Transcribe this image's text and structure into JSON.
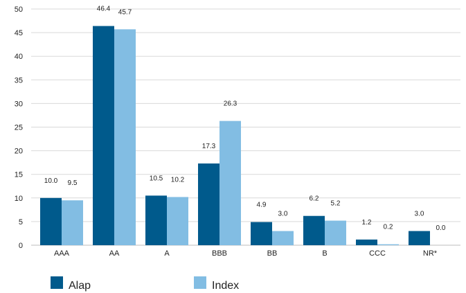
{
  "chart_data": {
    "type": "bar",
    "categories": [
      "AAA",
      "AA",
      "A",
      "BBB",
      "BB",
      "B",
      "CCC",
      "NR*"
    ],
    "series": [
      {
        "name": "Alap",
        "values": [
          10.0,
          46.4,
          10.5,
          17.3,
          4.9,
          6.2,
          1.2,
          3.0
        ],
        "labels": [
          "10.0",
          "46.4",
          "10.5",
          "17.3",
          "4.9",
          "6.2",
          "1.2",
          "3.0"
        ],
        "color": "#005a8c"
      },
      {
        "name": "Index",
        "values": [
          9.5,
          45.7,
          10.2,
          26.3,
          3.0,
          5.2,
          0.2,
          0.0
        ],
        "labels": [
          "9.5",
          "45.7",
          "10.2",
          "26.3",
          "3.0",
          "5.2",
          "0.2",
          "0.0"
        ],
        "color": "#82bde3"
      }
    ],
    "y_ticks": [
      "0",
      "5",
      "10",
      "15",
      "20",
      "25",
      "30",
      "35",
      "40",
      "45",
      "50"
    ],
    "ylim": [
      0,
      50
    ],
    "grid": true,
    "legend_position": "bottom-left"
  }
}
